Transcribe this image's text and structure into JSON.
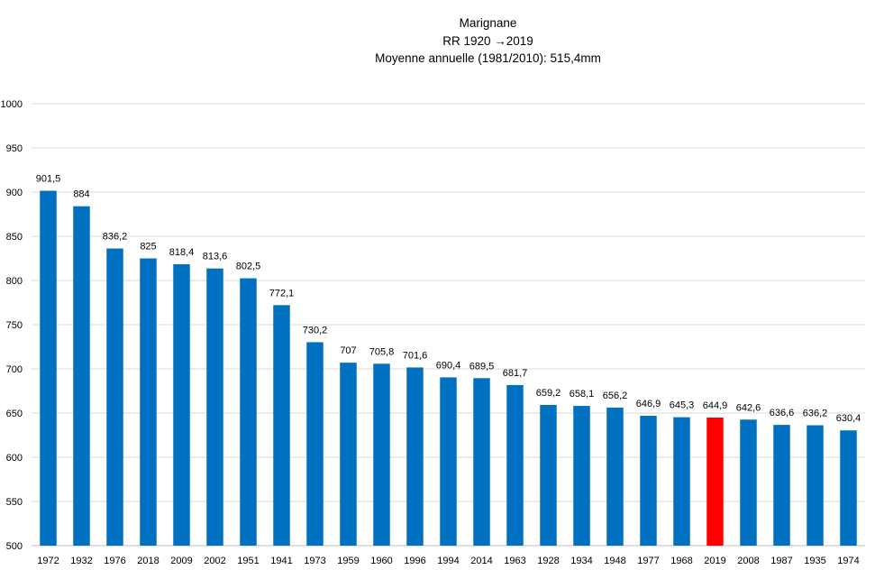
{
  "chart_data": {
    "type": "bar",
    "title_lines": [
      "Marignane",
      "RR  1920 →2019",
      "Moyenne annuelle (1981/2010): 515,4mm"
    ],
    "xlabel": "",
    "ylabel": "",
    "ylim": [
      500,
      1000
    ],
    "yticks": [
      500,
      550,
      600,
      650,
      700,
      750,
      800,
      850,
      900,
      950,
      1000
    ],
    "grid": true,
    "legend": "none",
    "colors": {
      "default": "#0070C0",
      "highlight": "#FF0000",
      "grid": "#D9D9D9"
    },
    "highlight_category": "2019",
    "categories": [
      "1972",
      "1932",
      "1976",
      "2018",
      "2009",
      "2002",
      "1951",
      "1941",
      "1973",
      "1959",
      "1960",
      "1996",
      "1994",
      "2014",
      "1963",
      "1928",
      "1934",
      "1948",
      "1977",
      "1968",
      "2019",
      "2008",
      "1987",
      "1935",
      "1974"
    ],
    "values": [
      901.5,
      884,
      836.2,
      825,
      818.4,
      813.6,
      802.5,
      772.1,
      730.2,
      707,
      705.8,
      701.6,
      690.4,
      689.5,
      681.7,
      659.2,
      658.1,
      656.2,
      646.9,
      645.3,
      644.9,
      642.6,
      636.6,
      636.2,
      630.4
    ],
    "data_labels": [
      "901,5",
      "884",
      "836,2",
      "825",
      "818,4",
      "813,6",
      "802,5",
      "772,1",
      "730,2",
      "707",
      "705,8",
      "701,6",
      "690,4",
      "689,5",
      "681,7",
      "659,2",
      "658,1",
      "656,2",
      "646,9",
      "645,3",
      "644,9",
      "642,6",
      "636,6",
      "636,2",
      "630,4"
    ]
  }
}
